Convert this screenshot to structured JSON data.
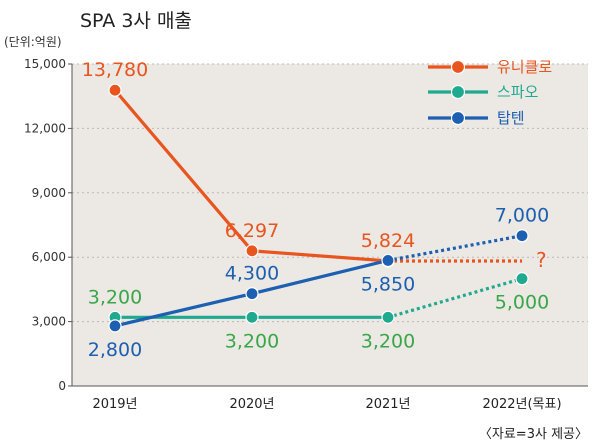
{
  "chart_data": {
    "type": "line",
    "title": "SPA 3사 매출",
    "unit_label": "(단위:억원)",
    "source": "〈자료=3사 제공〉",
    "categories": [
      "2019년",
      "2020년",
      "2021년",
      "2022년(목표)"
    ],
    "ylim": [
      0,
      15000
    ],
    "yticks": [
      0,
      3000,
      6000,
      9000,
      12000,
      15000
    ],
    "ytick_labels": [
      "0",
      "3,000",
      "6,000",
      "9,000",
      "12,000",
      "15,000"
    ],
    "grid": true,
    "legend_position": "top-right",
    "target_note": "?",
    "series": [
      {
        "name": "유니클로",
        "color": "#e8551f",
        "values": [
          13780,
          6297,
          5824,
          5824
        ],
        "labels": [
          "13,780",
          "6,297",
          "5,824",
          ""
        ],
        "label_pos": [
          "above",
          "above",
          "above",
          ""
        ],
        "projected_last": true,
        "last_marker": false
      },
      {
        "name": "스파오",
        "color": "#1fa98f",
        "values": [
          3200,
          3200,
          3200,
          5000
        ],
        "labels": [
          "3,200",
          "3,200",
          "3,200",
          "5,000"
        ],
        "label_pos": [
          "above",
          "below",
          "below",
          "below"
        ],
        "label_color": "#3aa64a",
        "projected_last": true,
        "last_marker": true
      },
      {
        "name": "탑텐",
        "color": "#1d5fb0",
        "values": [
          2800,
          4300,
          5850,
          7000
        ],
        "labels": [
          "2,800",
          "4,300",
          "5,850",
          "7,000"
        ],
        "label_pos": [
          "below",
          "above",
          "below",
          "above"
        ],
        "projected_last": true,
        "last_marker": true
      }
    ]
  }
}
